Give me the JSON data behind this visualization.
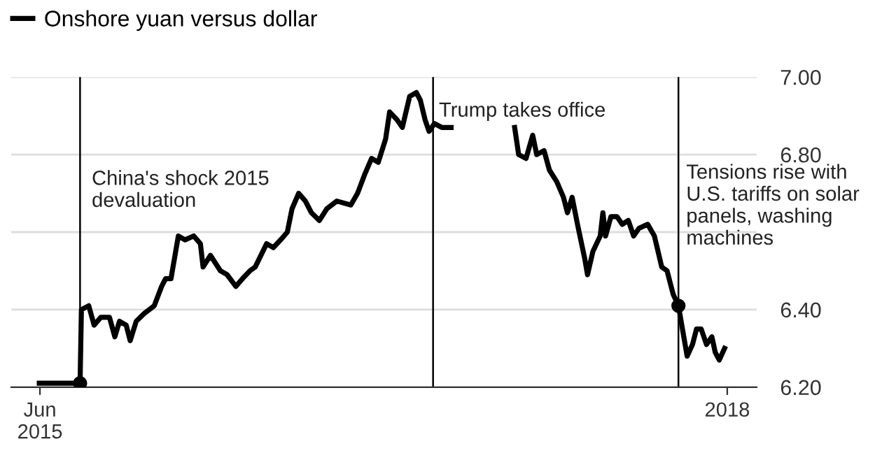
{
  "chart_data": {
    "type": "line",
    "x": [
      "2015-06-11",
      "2015-08-09",
      "2015-08-11",
      "2015-08-13",
      "2015-08-24",
      "2015-09-01",
      "2015-09-11",
      "2015-09-24",
      "2015-10-02",
      "2015-10-09",
      "2015-10-19",
      "2015-10-25",
      "2015-11-03",
      "2015-11-15",
      "2015-11-30",
      "2015-12-11",
      "2015-12-17",
      "2015-12-25",
      "2016-01-05",
      "2016-01-15",
      "2016-01-28",
      "2016-02-07",
      "2016-02-11",
      "2016-02-22",
      "2016-03-08",
      "2016-03-18",
      "2016-03-31",
      "2016-04-10",
      "2016-04-21",
      "2016-04-29",
      "2016-05-16",
      "2016-05-26",
      "2016-06-06",
      "2016-06-16",
      "2016-06-23",
      "2016-07-03",
      "2016-07-13",
      "2016-07-22",
      "2016-08-03",
      "2016-08-14",
      "2016-08-29",
      "2016-09-19",
      "2016-09-29",
      "2016-10-10",
      "2016-10-20",
      "2016-10-30",
      "2016-11-10",
      "2016-11-16",
      "2016-11-27",
      "2016-12-05",
      "2016-12-16",
      "2016-12-26",
      "2017-01-01",
      "2017-01-08",
      "2017-01-14",
      "2017-01-22",
      "2017-02-02",
      "2017-02-16",
      "2017-04-06",
      "2017-05-22",
      "2017-05-28",
      "2017-06-08",
      "2017-06-18",
      "2017-06-24",
      "2017-07-05",
      "2017-07-13",
      "2017-07-24",
      "2017-08-03",
      "2017-08-09",
      "2017-08-16",
      "2017-08-24",
      "2017-09-04",
      "2017-09-08",
      "2017-09-16",
      "2017-09-27",
      "2017-10-01",
      "2017-10-05",
      "2017-10-13",
      "2017-10-22",
      "2017-10-30",
      "2017-11-08",
      "2017-11-16",
      "2017-11-24",
      "2017-12-07",
      "2017-12-17",
      "2017-12-28",
      "2018-01-05",
      "2018-01-14",
      "2018-01-22",
      "2018-01-28",
      "2018-02-04",
      "2018-02-12",
      "2018-02-18",
      "2018-02-25",
      "2018-03-05",
      "2018-03-13",
      "2018-03-18",
      "2018-03-24",
      "2018-04-01"
    ],
    "series": [
      {
        "name": "Onshore yuan versus dollar",
        "color": "#000000",
        "values": [
          6.21,
          6.21,
          6.21,
          6.4,
          6.41,
          6.36,
          6.38,
          6.38,
          6.33,
          6.37,
          6.36,
          6.32,
          6.37,
          6.39,
          6.41,
          6.46,
          6.48,
          6.48,
          6.59,
          6.58,
          6.59,
          6.57,
          6.51,
          6.54,
          6.5,
          6.49,
          6.46,
          6.48,
          6.5,
          6.51,
          6.57,
          6.56,
          6.58,
          6.6,
          6.66,
          6.7,
          6.68,
          6.65,
          6.63,
          6.66,
          6.68,
          6.67,
          6.7,
          6.75,
          6.79,
          6.78,
          6.84,
          6.91,
          6.89,
          6.87,
          6.95,
          6.96,
          6.94,
          6.89,
          6.86,
          6.88,
          6.87,
          6.87,
          null,
          6.87,
          6.8,
          6.79,
          6.85,
          6.8,
          6.81,
          6.76,
          6.73,
          6.69,
          6.65,
          6.69,
          6.62,
          6.53,
          6.49,
          6.55,
          6.59,
          6.65,
          6.59,
          6.64,
          6.64,
          6.62,
          6.63,
          6.59,
          6.61,
          6.62,
          6.59,
          6.51,
          6.5,
          6.44,
          6.41,
          6.35,
          6.28,
          6.31,
          6.35,
          6.35,
          6.31,
          6.33,
          6.29,
          6.27,
          6.3
        ]
      },
      {
        "type": "scatter",
        "color": "#000000",
        "x": [
          "2015-08-11",
          "2018-01-22"
        ],
        "values": [
          6.21,
          6.41
        ]
      }
    ],
    "xlim": [
      "2015-04-30",
      "2018-05-19"
    ],
    "xticks": [
      {
        "value": "2015-06-12",
        "label": "Jun\n2015"
      },
      {
        "value": "2018-04-05",
        "label": "2018"
      }
    ],
    "ylim": [
      6.2,
      7.0
    ],
    "yticks": [
      {
        "value": 6.2,
        "label": "6.20"
      },
      {
        "value": 6.4,
        "label": "6.40"
      },
      {
        "value": 6.6,
        "label": null
      },
      {
        "value": 6.8,
        "label": "6.80"
      },
      {
        "value": 7.0,
        "label": "7.00"
      }
    ],
    "grid": "y",
    "legend": "top left",
    "ref_lines": [
      {
        "axis": "x",
        "value": "2015-08-11",
        "label": "China's shock 2015\ndevaluation",
        "color": "#000000"
      },
      {
        "axis": "x",
        "value": "2017-01-20",
        "label": "Trump takes office",
        "color": "#000000"
      },
      {
        "axis": "x",
        "value": "2018-01-22",
        "label": "Tensions rise with\nU.S. tariffs on solar\npanels, washing\nmachines",
        "color": "#000000"
      }
    ]
  }
}
